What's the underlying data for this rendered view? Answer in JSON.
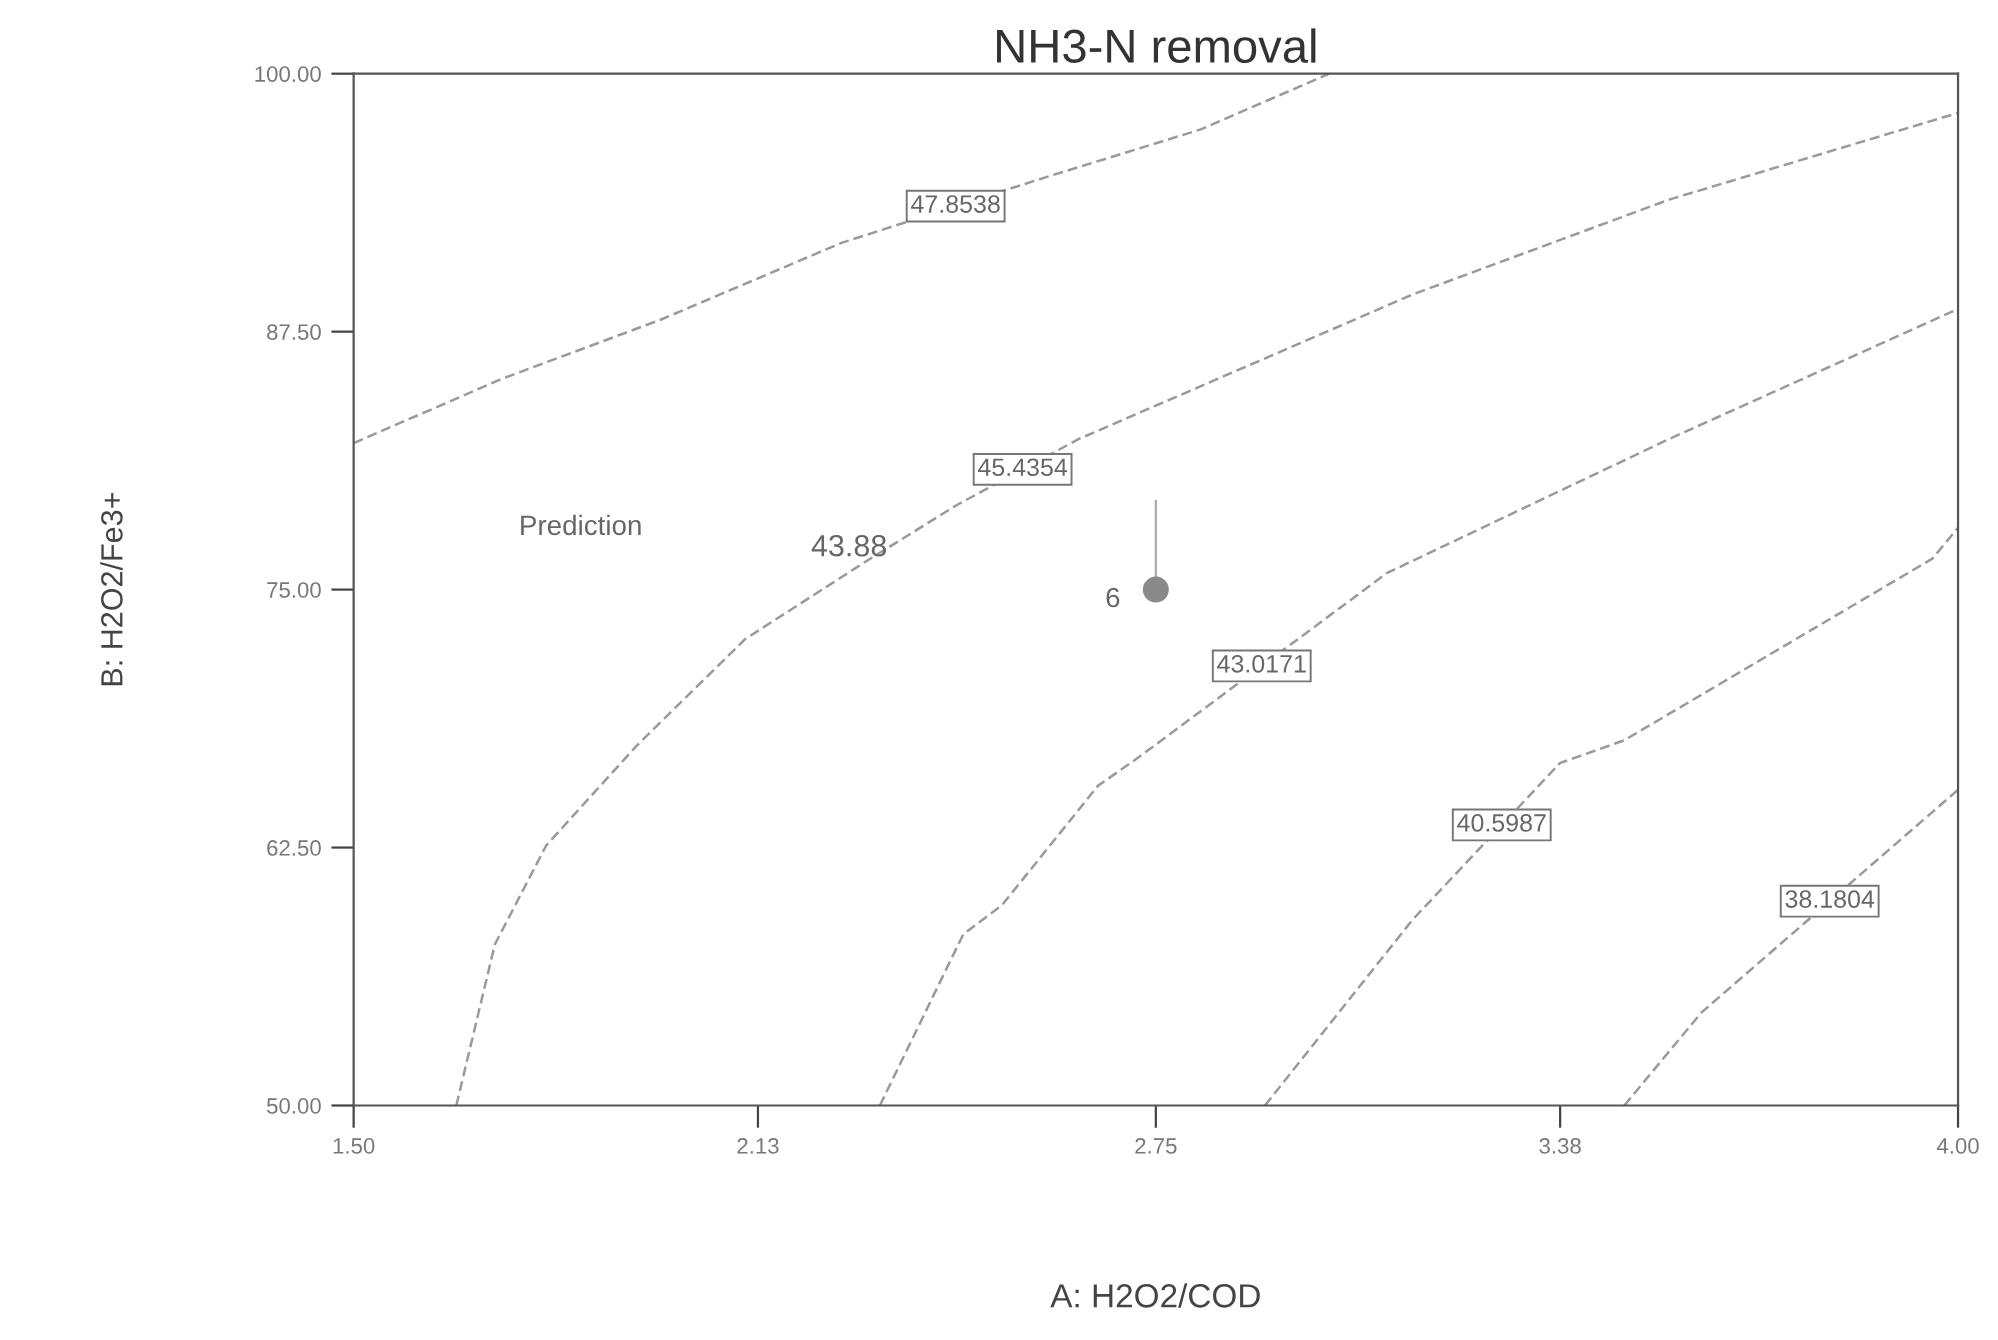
{
  "chart_data": {
    "type": "line",
    "title": "NH3-N removal",
    "xlabel": "A: H2O2/COD",
    "ylabel": "B: H2O2/Fe3+",
    "xlim": [
      1.5,
      4.0
    ],
    "ylim": [
      50,
      100
    ],
    "xticks": [
      {
        "value": 1.5,
        "label": "1.50"
      },
      {
        "value": 2.13,
        "label": "2.13"
      },
      {
        "value": 2.75,
        "label": "2.75"
      },
      {
        "value": 3.38,
        "label": "3.38"
      },
      {
        "value": 4.0,
        "label": "4.00"
      }
    ],
    "yticks": [
      {
        "value": 50,
        "label": "50.00"
      },
      {
        "value": 62.5,
        "label": "62.50"
      },
      {
        "value": 75,
        "label": "75.00"
      },
      {
        "value": 87.5,
        "label": "87.50"
      },
      {
        "value": 100,
        "label": "100.00"
      }
    ],
    "grid": false,
    "line_style": "dashed",
    "series": [
      {
        "name": "47.8538",
        "color": "#9a9a9a",
        "x": [
          1.5,
          1.73,
          1.98,
          2.26,
          2.57,
          2.82,
          3.02
        ],
        "values": [
          82.1,
          85.2,
          88.1,
          91.8,
          94.9,
          97.3,
          100
        ]
      },
      {
        "name": "45.4354",
        "color": "#9a9a9a",
        "x": [
          1.66,
          1.72,
          1.8,
          1.94,
          2.11,
          2.3,
          2.44,
          2.63,
          3.15,
          3.55,
          4.0
        ],
        "values": [
          50,
          57.8,
          62.6,
          67.4,
          72.6,
          76.4,
          79.1,
          82.3,
          89.3,
          93.9,
          98.1
        ]
      },
      {
        "name": "43.0171",
        "color": "#9a9a9a",
        "x": [
          2.32,
          2.45,
          2.51,
          2.66,
          2.72,
          3.11,
          3.55,
          4.0
        ],
        "values": [
          50,
          58.3,
          59.7,
          65.5,
          66.8,
          75.8,
          82.3,
          88.6
        ]
      },
      {
        "name": "40.5987",
        "color": "#9a9a9a",
        "x": [
          2.92,
          3.15,
          3.38,
          3.48,
          3.96,
          4.0
        ],
        "values": [
          50,
          59.0,
          66.6,
          67.7,
          76.5,
          78.0
        ]
      },
      {
        "name": "38.1804",
        "color": "#9a9a9a",
        "x": [
          3.48,
          3.6,
          4.0
        ],
        "values": [
          50,
          54.5,
          65.3
        ]
      },
      {
        "type": "scatter",
        "color": "#8a8a8a",
        "marker": "circle",
        "x": [
          2.75
        ],
        "values": [
          75
        ]
      }
    ],
    "annotations": [
      "Prediction",
      "43.88",
      "6"
    ]
  }
}
